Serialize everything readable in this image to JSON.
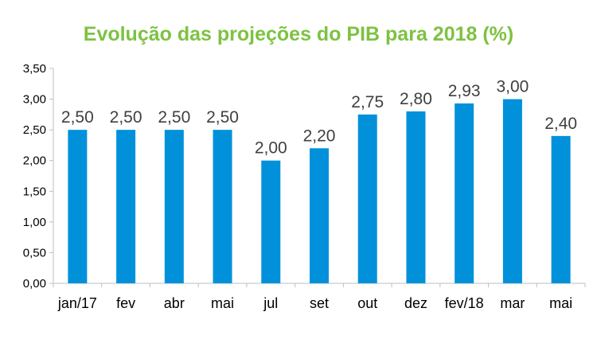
{
  "colors": {
    "title": "#7dc242",
    "bar": "#0091da",
    "axis": "#bfbfbf",
    "label": "#404040"
  },
  "chart_data": {
    "type": "bar",
    "title": "Evolução das projeções do PIB para 2018 (%)",
    "categories": [
      "jan/17",
      "fev",
      "abr",
      "mai",
      "jul",
      "set",
      "out",
      "dez",
      "fev/18",
      "mar",
      "mai"
    ],
    "values": [
      2.5,
      2.5,
      2.5,
      2.5,
      2.0,
      2.2,
      2.75,
      2.8,
      2.93,
      3.0,
      2.4
    ],
    "value_labels": [
      "2,50",
      "2,50",
      "2,50",
      "2,50",
      "2,00",
      "2,20",
      "2,75",
      "2,80",
      "2,93",
      "3,00",
      "2,40"
    ],
    "y_ticks": [
      "0,00",
      "0,50",
      "1,00",
      "1,50",
      "2,00",
      "2,50",
      "3,00",
      "3,50"
    ],
    "ylim": [
      0,
      3.5
    ],
    "xlabel": "",
    "ylabel": "",
    "grid": false,
    "legend": "none"
  }
}
